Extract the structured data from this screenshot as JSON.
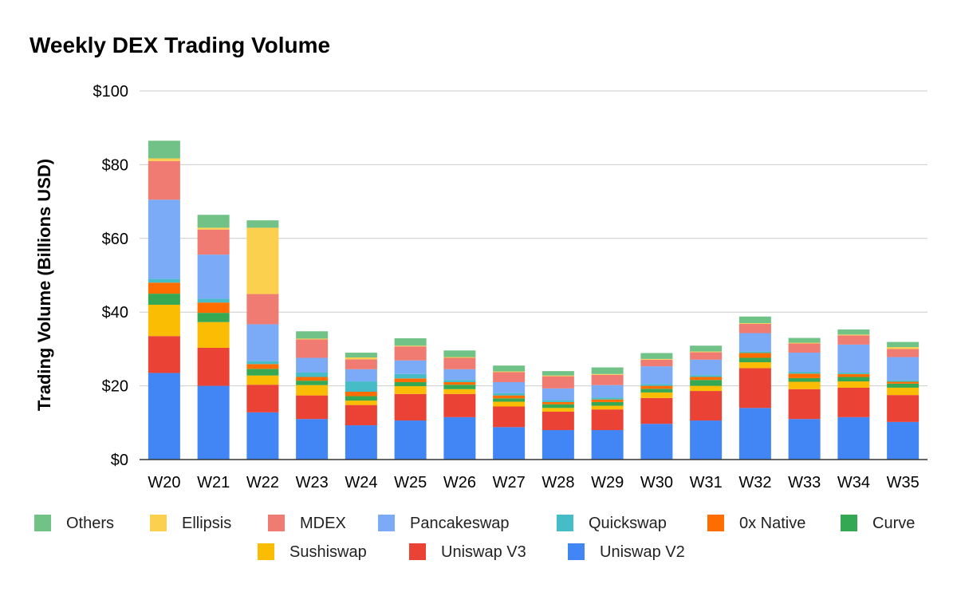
{
  "chart_data": {
    "type": "bar",
    "stacked": true,
    "title": "Weekly DEX Trading Volume",
    "xlabel": "",
    "ylabel": "Trading Volume (Billions USD)",
    "ylim": [
      0,
      100
    ],
    "yticks": [
      "$0",
      "$20",
      "$40",
      "$60",
      "$80",
      "$100"
    ],
    "ytick_values": [
      0,
      20,
      40,
      60,
      80,
      100
    ],
    "grid": true,
    "legend_position": "bottom",
    "categories": [
      "W20",
      "W21",
      "W22",
      "W23",
      "W24",
      "W25",
      "W26",
      "W27",
      "W28",
      "W29",
      "W30",
      "W31",
      "W32",
      "W33",
      "W34",
      "W35"
    ],
    "series": [
      {
        "name": "Uniswap V2",
        "color": "#4285F4",
        "values": [
          23.5,
          20.0,
          12.8,
          11.0,
          9.3,
          10.6,
          11.5,
          8.8,
          8.0,
          8.0,
          9.7,
          10.6,
          14.0,
          11.0,
          11.5,
          10.2
        ]
      },
      {
        "name": "Uniswap V3",
        "color": "#EA4335",
        "values": [
          10.0,
          10.3,
          7.5,
          6.4,
          5.5,
          7.2,
          6.3,
          5.6,
          5.0,
          5.6,
          7.0,
          8.0,
          10.8,
          8.1,
          8.0,
          7.3
        ]
      },
      {
        "name": "Sushiswap",
        "color": "#FBBC04",
        "values": [
          8.5,
          7.0,
          2.5,
          2.8,
          1.2,
          2.1,
          1.3,
          1.3,
          1.0,
          1.0,
          1.5,
          1.4,
          1.6,
          2.0,
          1.7,
          2.0
        ]
      },
      {
        "name": "Curve",
        "color": "#34A853",
        "values": [
          3.0,
          2.5,
          1.8,
          1.2,
          1.2,
          1.1,
          1.2,
          0.9,
          1.0,
          1.0,
          1.0,
          1.6,
          1.2,
          1.0,
          1.2,
          1.1
        ]
      },
      {
        "name": "0x Native",
        "color": "#FF6D01",
        "values": [
          3.0,
          2.8,
          1.3,
          1.0,
          1.2,
          1.0,
          0.7,
          0.8,
          0.6,
          0.7,
          0.8,
          0.8,
          1.3,
          1.2,
          0.8,
          0.5
        ]
      },
      {
        "name": "Quickswap",
        "color": "#46BDC6",
        "values": [
          1.0,
          1.0,
          0.8,
          1.2,
          2.8,
          1.2,
          0.6,
          0.6,
          0.5,
          0.5,
          0.5,
          0.5,
          0.4,
          0.5,
          0.4,
          0.4
        ]
      },
      {
        "name": "Pancakeswap",
        "color": "#7BAAF7",
        "values": [
          21.5,
          12.0,
          10.0,
          4.0,
          3.3,
          3.7,
          2.9,
          3.0,
          3.2,
          3.4,
          4.8,
          4.2,
          5.0,
          5.2,
          7.6,
          6.3
        ]
      },
      {
        "name": "MDEX",
        "color": "#F07B72",
        "values": [
          10.5,
          6.8,
          8.2,
          5.0,
          2.7,
          3.8,
          3.1,
          2.7,
          3.3,
          2.8,
          1.8,
          2.0,
          2.5,
          2.5,
          2.5,
          2.2
        ]
      },
      {
        "name": "Ellipsis",
        "color": "#FCD04F",
        "values": [
          0.7,
          0.5,
          18.0,
          0.2,
          0.5,
          0.2,
          0.2,
          0.2,
          0.2,
          0.2,
          0.2,
          0.2,
          0.2,
          0.2,
          0.2,
          0.5
        ]
      },
      {
        "name": "Others",
        "color": "#71C287",
        "values": [
          4.8,
          3.5,
          2.0,
          2.0,
          1.3,
          2.0,
          1.8,
          1.6,
          1.2,
          1.8,
          1.6,
          1.6,
          1.8,
          1.3,
          1.4,
          1.4
        ]
      }
    ],
    "legend_order": [
      "Others",
      "Ellipsis",
      "MDEX",
      "Pancakeswap",
      "Quickswap",
      "0x Native",
      "Curve",
      "Sushiswap",
      "Uniswap V3",
      "Uniswap V2"
    ]
  }
}
